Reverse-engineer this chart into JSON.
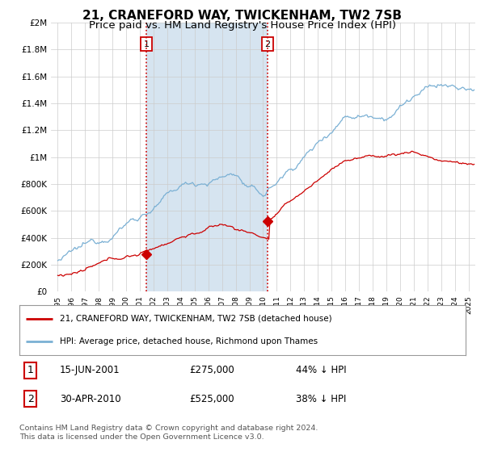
{
  "title": "21, CRANEFORD WAY, TWICKENHAM, TW2 7SB",
  "subtitle": "Price paid vs. HM Land Registry's House Price Index (HPI)",
  "ylim": [
    0,
    2000000
  ],
  "yticks": [
    0,
    200000,
    400000,
    600000,
    800000,
    1000000,
    1200000,
    1400000,
    1600000,
    1800000,
    2000000
  ],
  "ytick_labels": [
    "£0",
    "£200K",
    "£400K",
    "£600K",
    "£800K",
    "£1M",
    "£1.2M",
    "£1.4M",
    "£1.6M",
    "£1.8M",
    "£2M"
  ],
  "hpi_color": "#7ab0d4",
  "price_color": "#cc0000",
  "vline_color": "#cc0000",
  "shade_color": "#d6e4f0",
  "transaction1_date": 2001.46,
  "transaction1_price": 275000,
  "transaction2_date": 2010.33,
  "transaction2_price": 525000,
  "legend_label1": "21, CRANEFORD WAY, TWICKENHAM, TW2 7SB (detached house)",
  "legend_label2": "HPI: Average price, detached house, Richmond upon Thames",
  "footer": "Contains HM Land Registry data © Crown copyright and database right 2024.\nThis data is licensed under the Open Government Licence v3.0.",
  "background_color": "#ffffff",
  "title_fontsize": 11,
  "subtitle_fontsize": 9.5
}
